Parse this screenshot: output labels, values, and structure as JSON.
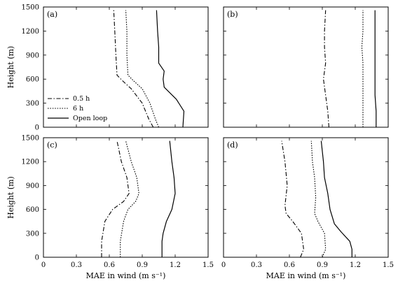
{
  "chart_data": {
    "type": "line",
    "xlabel": "MAE in wind (m s⁻¹)",
    "ylabel": "Height (m)",
    "xlim": [
      0,
      1.5
    ],
    "ylim": [
      0,
      1500
    ],
    "xticks": [
      0,
      0.3,
      0.6,
      0.9,
      1.2,
      1.5
    ],
    "xtick_labels": [
      "0",
      "0.3",
      "0.6",
      "0.9",
      "1.2",
      "1.5"
    ],
    "yticks": [
      0,
      300,
      600,
      900,
      1200,
      1500
    ],
    "ytick_labels": [
      "0",
      "300",
      "600",
      "900",
      "1200",
      "1500"
    ],
    "legend": {
      "placement": "lower-left of panel (a)",
      "entries": [
        {
          "label": "0.5 h",
          "style": "dash-dot"
        },
        {
          "label": "6 h",
          "style": "dotted"
        },
        {
          "label": "Open loop",
          "style": "solid"
        }
      ]
    },
    "panels": [
      {
        "label": "(a)",
        "series": [
          {
            "name": "0.5 h",
            "style": "dash-dot",
            "points": [
              [
                1.0,
                0
              ],
              [
                0.96,
                100
              ],
              [
                0.9,
                300
              ],
              [
                0.8,
                480
              ],
              [
                0.72,
                580
              ],
              [
                0.67,
                650
              ],
              [
                0.66,
                900
              ],
              [
                0.65,
                1200
              ],
              [
                0.64,
                1460
              ]
            ]
          },
          {
            "name": "6 h",
            "style": "dotted",
            "points": [
              [
                1.05,
                0
              ],
              [
                1.02,
                100
              ],
              [
                0.97,
                300
              ],
              [
                0.9,
                480
              ],
              [
                0.82,
                580
              ],
              [
                0.77,
                650
              ],
              [
                0.76,
                900
              ],
              [
                0.76,
                1200
              ],
              [
                0.75,
                1460
              ]
            ]
          },
          {
            "name": "Open loop",
            "style": "solid",
            "points": [
              [
                1.27,
                0
              ],
              [
                1.28,
                200
              ],
              [
                1.21,
                350
              ],
              [
                1.1,
                500
              ],
              [
                1.09,
                600
              ],
              [
                1.1,
                700
              ],
              [
                1.05,
                800
              ],
              [
                1.05,
                1000
              ],
              [
                1.04,
                1200
              ],
              [
                1.03,
                1460
              ]
            ]
          }
        ]
      },
      {
        "label": "(b)",
        "series": [
          {
            "name": "0.5 h",
            "style": "dash-dot",
            "points": [
              [
                0.96,
                0
              ],
              [
                0.95,
                200
              ],
              [
                0.93,
                400
              ],
              [
                0.91,
                600
              ],
              [
                0.93,
                800
              ],
              [
                0.92,
                1000
              ],
              [
                0.92,
                1200
              ],
              [
                0.93,
                1460
              ]
            ]
          },
          {
            "name": "6 h",
            "style": "dotted",
            "points": [
              [
                1.27,
                0
              ],
              [
                1.27,
                200
              ],
              [
                1.27,
                400
              ],
              [
                1.27,
                600
              ],
              [
                1.27,
                800
              ],
              [
                1.26,
                1000
              ],
              [
                1.27,
                1200
              ],
              [
                1.27,
                1460
              ]
            ]
          },
          {
            "name": "Open loop",
            "style": "solid",
            "points": [
              [
                1.39,
                0
              ],
              [
                1.39,
                200
              ],
              [
                1.38,
                400
              ],
              [
                1.38,
                600
              ],
              [
                1.38,
                800
              ],
              [
                1.38,
                1000
              ],
              [
                1.38,
                1200
              ],
              [
                1.38,
                1460
              ]
            ]
          }
        ]
      },
      {
        "label": "(c)",
        "series": [
          {
            "name": "0.5 h",
            "style": "dash-dot",
            "points": [
              [
                0.53,
                0
              ],
              [
                0.53,
                200
              ],
              [
                0.56,
                450
              ],
              [
                0.63,
                600
              ],
              [
                0.73,
                700
              ],
              [
                0.78,
                800
              ],
              [
                0.76,
                1000
              ],
              [
                0.71,
                1200
              ],
              [
                0.67,
                1460
              ]
            ]
          },
          {
            "name": "6 h",
            "style": "dotted",
            "points": [
              [
                0.7,
                0
              ],
              [
                0.7,
                200
              ],
              [
                0.73,
                450
              ],
              [
                0.77,
                600
              ],
              [
                0.84,
                700
              ],
              [
                0.87,
                800
              ],
              [
                0.85,
                1000
              ],
              [
                0.8,
                1200
              ],
              [
                0.75,
                1460
              ]
            ]
          },
          {
            "name": "Open loop",
            "style": "solid",
            "points": [
              [
                1.08,
                0
              ],
              [
                1.08,
                200
              ],
              [
                1.09,
                300
              ],
              [
                1.12,
                450
              ],
              [
                1.17,
                600
              ],
              [
                1.2,
                800
              ],
              [
                1.19,
                1000
              ],
              [
                1.17,
                1200
              ],
              [
                1.15,
                1460
              ]
            ]
          }
        ]
      },
      {
        "label": "(d)",
        "series": [
          {
            "name": "0.5 h",
            "style": "dash-dot",
            "points": [
              [
                0.7,
                0
              ],
              [
                0.73,
                100
              ],
              [
                0.71,
                300
              ],
              [
                0.63,
                450
              ],
              [
                0.57,
                550
              ],
              [
                0.56,
                650
              ],
              [
                0.58,
                900
              ],
              [
                0.56,
                1200
              ],
              [
                0.53,
                1460
              ]
            ]
          },
          {
            "name": "6 h",
            "style": "dotted",
            "points": [
              [
                0.9,
                0
              ],
              [
                0.93,
                100
              ],
              [
                0.92,
                300
              ],
              [
                0.86,
                450
              ],
              [
                0.83,
                550
              ],
              [
                0.84,
                750
              ],
              [
                0.83,
                1000
              ],
              [
                0.81,
                1200
              ],
              [
                0.8,
                1460
              ]
            ]
          },
          {
            "name": "Open loop",
            "style": "solid",
            "points": [
              [
                1.17,
                0
              ],
              [
                1.17,
                100
              ],
              [
                1.15,
                200
              ],
              [
                1.07,
                320
              ],
              [
                1.01,
                420
              ],
              [
                0.97,
                600
              ],
              [
                0.95,
                800
              ],
              [
                0.92,
                1000
              ],
              [
                0.91,
                1200
              ],
              [
                0.89,
                1460
              ]
            ]
          }
        ]
      }
    ]
  }
}
